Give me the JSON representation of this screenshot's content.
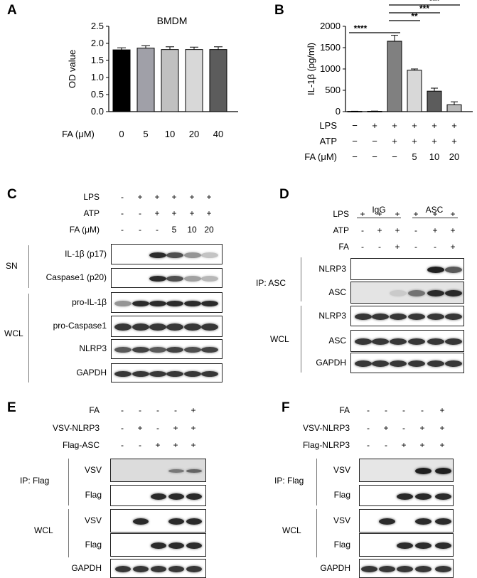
{
  "panel_labels": {
    "A": "A",
    "B": "B",
    "C": "C",
    "D": "D",
    "E": "E",
    "F": "F"
  },
  "chart_data": [
    {
      "type": "bar",
      "title": "BMDM",
      "xlabel": "FA (μM)",
      "ylabel": "OD value",
      "categories": [
        "0",
        "5",
        "10",
        "20",
        "40"
      ],
      "values": [
        1.81,
        1.86,
        1.82,
        1.82,
        1.82
      ],
      "errors": [
        0.06,
        0.07,
        0.08,
        0.07,
        0.08
      ],
      "colors": [
        "#000000",
        "#a0a0a8",
        "#c0c0c0",
        "#d8d8d8",
        "#5c5c5c"
      ],
      "yticks": [
        "0.0",
        "0.5",
        "1.0",
        "1.5",
        "2.0",
        "2.5"
      ],
      "ylim": [
        0,
        2.5
      ]
    },
    {
      "type": "bar",
      "ylabel": "IL-1β (pg/ml)",
      "values": [
        5,
        8,
        1650,
        970,
        480,
        160
      ],
      "errors": [
        5,
        5,
        140,
        30,
        70,
        70
      ],
      "colors": [
        "#000000",
        "#a0a0a8",
        "#808080",
        "#d8d8d8",
        "#5c5c5c",
        "#b8b8b8"
      ],
      "yticks": [
        "0",
        "500",
        "1000",
        "1500",
        "2000"
      ],
      "ylim": [
        0,
        2000
      ],
      "rows": [
        {
          "label": "LPS",
          "values": [
            "−",
            "+",
            "+",
            "+",
            "+",
            "+"
          ]
        },
        {
          "label": "ATP",
          "values": [
            "−",
            "−",
            "+",
            "+",
            "+",
            "+"
          ]
        },
        {
          "label": "FA (μM)",
          "values": [
            "−",
            "−",
            "−",
            "5",
            "10",
            "20"
          ]
        }
      ],
      "significance": [
        {
          "label": "****",
          "from": 0,
          "to": 2
        },
        {
          "label": "**",
          "from": 2,
          "to": 3
        },
        {
          "label": "***",
          "from": 2,
          "to": 4
        },
        {
          "label": "***",
          "from": 2,
          "to": 5
        }
      ]
    }
  ],
  "panel_c": {
    "rows": [
      {
        "label": "LPS",
        "values": [
          "-",
          "+",
          "+",
          "+",
          "+",
          "+"
        ]
      },
      {
        "label": "ATP",
        "values": [
          "-",
          "-",
          "+",
          "+",
          "+",
          "+"
        ]
      },
      {
        "label": "FA (μM)",
        "values": [
          "-",
          "-",
          "-",
          "5",
          "10",
          "20"
        ]
      }
    ],
    "group_sn": "SN",
    "group_wcl": "WCL",
    "blots": [
      "IL-1β (p17)",
      "Caspase1 (p20)",
      "pro-IL-1β",
      "pro-Caspase1",
      "NLRP3",
      "GAPDH"
    ]
  },
  "panel_d": {
    "groups": [
      "IgG",
      "ASC"
    ],
    "rows": [
      {
        "label": "LPS",
        "values": [
          "+",
          "+",
          "+",
          "+",
          "+",
          "+"
        ]
      },
      {
        "label": "ATP",
        "values": [
          "-",
          "+",
          "+",
          "-",
          "+",
          "+"
        ]
      },
      {
        "label": "FA",
        "values": [
          "-",
          "-",
          "+",
          "-",
          "-",
          "+"
        ]
      }
    ],
    "group_ip": "IP: ASC",
    "group_wcl": "WCL",
    "blots": [
      "NLRP3",
      "ASC",
      "NLRP3",
      "ASC",
      "GAPDH"
    ]
  },
  "panel_e": {
    "rows": [
      {
        "label": "FA",
        "values": [
          "-",
          "-",
          "-",
          "-",
          "+"
        ]
      },
      {
        "label": "VSV-NLRP3",
        "values": [
          "-",
          "+",
          "-",
          "+",
          "+"
        ]
      },
      {
        "label": "Flag-ASC",
        "values": [
          "-",
          "-",
          "+",
          "+",
          "+"
        ]
      }
    ],
    "group_ip": "IP: Flag",
    "group_wcl": "WCL",
    "blots": [
      "VSV",
      "Flag",
      "VSV",
      "Flag",
      "GAPDH"
    ]
  },
  "panel_f": {
    "rows": [
      {
        "label": "FA",
        "values": [
          "-",
          "-",
          "-",
          "-",
          "+"
        ]
      },
      {
        "label": "VSV-NLRP3",
        "values": [
          "-",
          "+",
          "-",
          "+",
          "+"
        ]
      },
      {
        "label": "Flag-NLRP3",
        "values": [
          "-",
          "-",
          "+",
          "+",
          "+"
        ]
      }
    ],
    "group_ip": "IP: Flag",
    "group_wcl": "WCL",
    "blots": [
      "VSV",
      "Flag",
      "VSV",
      "Flag",
      "GAPDH"
    ]
  }
}
